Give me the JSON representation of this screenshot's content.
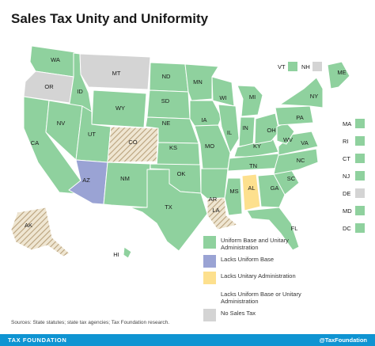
{
  "title": "Sales Tax Unity and Uniformity",
  "colors": {
    "uniform": "#8fd19e",
    "lacks_base": "#9aa3d4",
    "lacks_admin": "#fde08e",
    "lacks_either": "#d9cbb0",
    "no_tax": "#d4d4d4",
    "border": "#ffffff",
    "footer": "#0f94d2"
  },
  "states": {
    "WA": "WA",
    "OR": "OR",
    "CA": "CA",
    "ID": "ID",
    "NV": "NV",
    "MT": "MT",
    "WY": "WY",
    "UT": "UT",
    "AZ": "AZ",
    "CO": "CO",
    "NM": "NM",
    "ND": "ND",
    "SD": "SD",
    "NE": "NE",
    "KS": "KS",
    "OK": "OK",
    "TX": "TX",
    "MN": "MN",
    "IA": "IA",
    "MO": "MO",
    "AR": "AR",
    "LA": "LA",
    "WI": "WI",
    "IL": "IL",
    "MS": "MS",
    "MI": "MI",
    "IN": "IN",
    "KY": "KY",
    "TN": "TN",
    "AL": "AL",
    "OH": "OH",
    "GA": "GA",
    "FL": "FL",
    "SC": "SC",
    "NC": "NC",
    "VA": "VA",
    "WV": "WV",
    "PA": "PA",
    "NY": "NY",
    "ME": "ME",
    "AK": "AK",
    "HI": "HI"
  },
  "small_states_top": [
    {
      "abbr": "VT",
      "category": "uniform"
    },
    {
      "abbr": "NH",
      "category": "no_tax"
    }
  ],
  "small_states_side": [
    {
      "abbr": "MA",
      "category": "uniform"
    },
    {
      "abbr": "RI",
      "category": "uniform"
    },
    {
      "abbr": "CT",
      "category": "uniform"
    },
    {
      "abbr": "NJ",
      "category": "uniform"
    },
    {
      "abbr": "DE",
      "category": "no_tax"
    },
    {
      "abbr": "MD",
      "category": "uniform"
    },
    {
      "abbr": "DC",
      "category": "uniform"
    }
  ],
  "legend": [
    {
      "label": "Uniform Base and Unitary Administration",
      "category": "uniform"
    },
    {
      "label": "Lacks Uniform Base",
      "category": "lacks_base"
    },
    {
      "label": "Lacks Unitary Administration",
      "category": "lacks_admin"
    },
    {
      "label": "Lacks Uniform Base or Unitary Administration",
      "category": "lacks_either"
    },
    {
      "label": "No Sales Tax",
      "category": "no_tax"
    }
  ],
  "source": "Sources: State statutes; state tax agencies; Tax Foundation research.",
  "footer": {
    "left": "TAX FOUNDATION",
    "right": "@TaxFoundation"
  }
}
